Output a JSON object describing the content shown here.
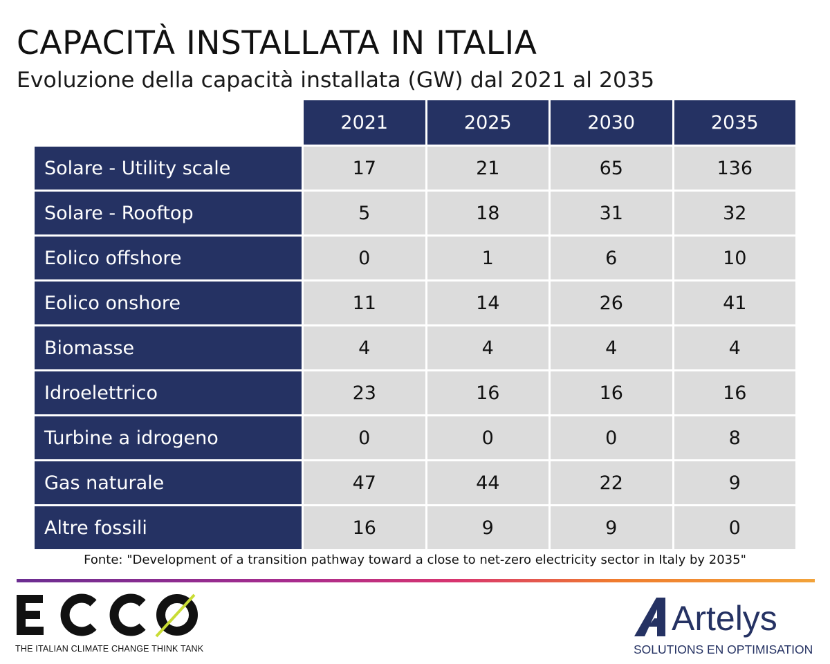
{
  "colors": {
    "navy": "#253263",
    "cell_bg": "#dcdcdc",
    "ecco_accent": "#c9dc34",
    "artelys_blue": "#253263"
  },
  "chart_data": {
    "type": "table",
    "title": "CAPACITÀ INSTALLATA IN ITALIA",
    "subtitle": "Evoluzione della capacità installata (GW) dal 2021 al 2035",
    "columns": [
      "2021",
      "2025",
      "2030",
      "2035"
    ],
    "rows": [
      {
        "label": "Solare - Utility scale",
        "values": [
          "17",
          "21",
          "65",
          "136"
        ]
      },
      {
        "label": "Solare - Rooftop",
        "values": [
          "5",
          "18",
          "31",
          "32"
        ]
      },
      {
        "label": "Eolico offshore",
        "values": [
          "0",
          "1",
          "6",
          "10"
        ]
      },
      {
        "label": "Eolico onshore",
        "values": [
          "11",
          "14",
          "26",
          "41"
        ]
      },
      {
        "label": "Biomasse",
        "values": [
          "4",
          "4",
          "4",
          "4"
        ]
      },
      {
        "label": "Idroelettrico",
        "values": [
          "23",
          "16",
          "16",
          "16"
        ]
      },
      {
        "label": "Turbine a idrogeno",
        "values": [
          "0",
          "0",
          "0",
          "8"
        ]
      },
      {
        "label": "Gas naturale",
        "values": [
          "47",
          "44",
          "22",
          "9"
        ]
      },
      {
        "label": "Altre fossili",
        "values": [
          "16",
          "9",
          "9",
          "0"
        ]
      }
    ],
    "source": "Fonte: \"Development of a transition pathway toward a close to net-zero electricity sector in Italy by 2035\""
  },
  "footer": {
    "ecco": {
      "wordmark": "ECCO",
      "tagline": "THE ITALIAN CLIMATE CHANGE THINK TANK"
    },
    "artelys": {
      "wordmark": "Artelys",
      "tagline": "SOLUTIONS EN OPTIMISATION"
    }
  }
}
